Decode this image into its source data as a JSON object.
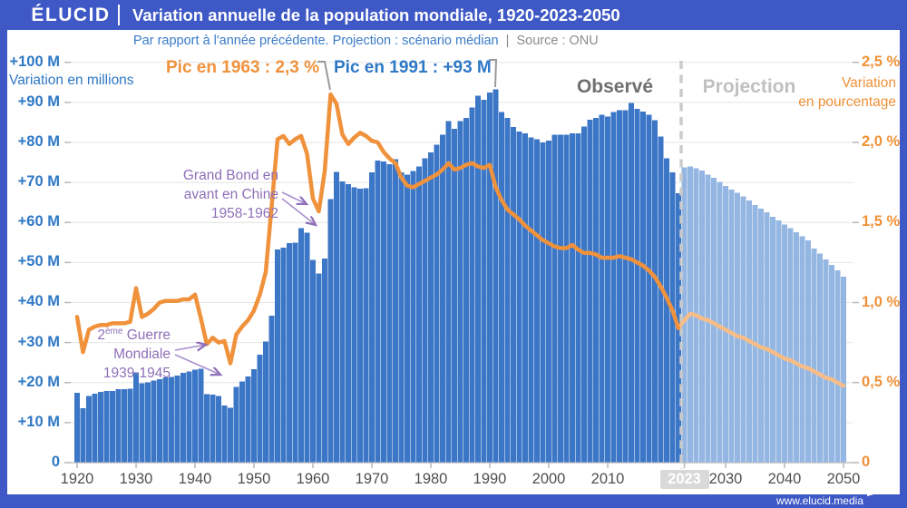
{
  "header": {
    "logo": "ÉLUCID",
    "title": "Variation annuelle de la population mondiale, 1920-2023-2050"
  },
  "subtitle": {
    "text_blue": "Par rapport à l'année précédente. Projection : scénario médian",
    "divider": "  |  ",
    "source": "Source : ONU"
  },
  "footer": {
    "url": "www.elucid.media"
  },
  "zones": {
    "observed": "Observé",
    "projection": "Projection"
  },
  "annotations": {
    "peak1963": "Pic en 1963 : 2,3 %",
    "peak1991": "Pic en 1991 : +93 M",
    "china": {
      "line1": "Grand Bond en",
      "line2": "avant en Chine",
      "line3": "1958-1962"
    },
    "ww2": {
      "line1_num": "2",
      "line1_sup": "ème",
      "line1_rest": " Guerre",
      "line2": "Mondiale",
      "line3": "1939-1945"
    }
  },
  "axes": {
    "left": {
      "title": "Variation en millions",
      "ticks": [
        {
          "label": "+100 M",
          "value": 100
        },
        {
          "label": "+90 M",
          "value": 90
        },
        {
          "label": "+80 M",
          "value": 80
        },
        {
          "label": "+70 M",
          "value": 70
        },
        {
          "label": "+60 M",
          "value": 60
        },
        {
          "label": "+50 M",
          "value": 50
        },
        {
          "label": "+40 M",
          "value": 40
        },
        {
          "label": "+30 M",
          "value": 30
        },
        {
          "label": "+20 M",
          "value": 20
        },
        {
          "label": "+10 M",
          "value": 10
        },
        {
          "label": "0",
          "value": 0
        }
      ]
    },
    "right": {
      "title_line1": "Variation",
      "title_line2": "en pourcentage",
      "ticks": [
        {
          "label": "2,5 %",
          "value": 2.5
        },
        {
          "label": "2,0 %",
          "value": 2.0
        },
        {
          "label": "1,5 %",
          "value": 1.5
        },
        {
          "label": "1,0 %",
          "value": 1.0
        },
        {
          "label": "0,5 %",
          "value": 0.5
        },
        {
          "label": "0",
          "value": 0
        }
      ]
    },
    "x": {
      "labels": [
        {
          "label": "1920",
          "year": 1920
        },
        {
          "label": "1930",
          "year": 1930
        },
        {
          "label": "1940",
          "year": 1940
        },
        {
          "label": "1950",
          "year": 1950
        },
        {
          "label": "1960",
          "year": 1960
        },
        {
          "label": "1970",
          "year": 1970
        },
        {
          "label": "1980",
          "year": 1980
        },
        {
          "label": "1990",
          "year": 1990
        },
        {
          "label": "2000",
          "year": 2000
        },
        {
          "label": "2010",
          "year": 2010
        },
        {
          "label": "2023",
          "year": 2023,
          "highlight": true
        },
        {
          "label": "2030",
          "year": 2030
        },
        {
          "label": "2040",
          "year": 2040
        },
        {
          "label": "2050",
          "year": 2050
        }
      ]
    }
  },
  "colors": {
    "header_bg": "#3e58c6",
    "bar_observed": "#3b76c7",
    "bar_projection": "#94b6e2",
    "line_observed": "#f0923c",
    "line_projection": "#f6bd88",
    "axis_blue": "#2e78c6",
    "axis_orange": "#ef9138",
    "annotation_purple": "#8e6fb8",
    "zone_observed_gray": "#6f6f6f",
    "zone_projection_gray": "#c0c0c0",
    "x_label_gray": "#4f4f4f",
    "grid": "#e4e4e4",
    "axis_line": "#c2c2c2",
    "tick": "#b9b9b9",
    "dashed_line": "#cbcbcb",
    "badge_bg": "#d9d9d9"
  },
  "chart_data": {
    "type": "bar+line",
    "title": "Variation annuelle de la population mondiale, 1920-2023-2050",
    "start_year": 1920,
    "end_year": 2050,
    "observed_through": 2022,
    "projection_from": 2023,
    "left_ylabel": "Variation en millions",
    "right_ylabel": "Variation en pourcentage",
    "left_ylim": [
      0,
      100
    ],
    "right_ylim": [
      0,
      2.5
    ],
    "bars_millions": [
      17.4,
      13.6,
      16.6,
      17.2,
      17.7,
      17.9,
      17.9,
      18.3,
      18.3,
      18.5,
      22.6,
      19.8,
      20.1,
      20.5,
      20.9,
      21.3,
      21.4,
      21.8,
      22.4,
      22.8,
      23.2,
      23.5,
      17.1,
      17.0,
      16.7,
      14.3,
      13.7,
      18.9,
      20.3,
      21.5,
      23.3,
      27.0,
      30.2,
      36.7,
      53.3,
      53.7,
      54.8,
      55.0,
      58.6,
      57.4,
      50.6,
      47.2,
      51.0,
      65.8,
      72.6,
      70.3,
      69.6,
      68.8,
      68.4,
      68.6,
      72.5,
      75.5,
      75.2,
      74.5,
      75.8,
      72.5,
      72.0,
      72.8,
      74.0,
      76.0,
      77.5,
      79.4,
      81.9,
      85.3,
      83.4,
      85.3,
      86.1,
      88.7,
      91.7,
      90.6,
      92.5,
      93.2,
      87.6,
      86.1,
      83.8,
      82.7,
      82.3,
      81.2,
      80.8,
      80.0,
      80.4,
      81.9,
      81.9,
      81.9,
      82.3,
      82.3,
      84.0,
      85.7,
      86.1,
      86.9,
      86.5,
      87.6,
      88.0,
      88.0,
      89.9,
      88.4,
      87.7,
      86.9,
      85.5,
      81.5,
      76.0,
      72.5,
      67.3,
      73.8,
      74.0,
      73.5,
      73.0,
      72.0,
      71.1,
      70.1,
      69.1,
      68.2,
      67.4,
      66.5,
      65.5,
      64.4,
      63.5,
      62.5,
      61.4,
      60.5,
      59.5,
      58.6,
      57.6,
      56.5,
      55.5,
      53.5,
      52.2,
      50.8,
      49.4,
      48.0,
      46.5
    ],
    "line_percent": [
      0.91,
      0.69,
      0.83,
      0.85,
      0.86,
      0.86,
      0.87,
      0.87,
      0.87,
      0.88,
      1.09,
      0.91,
      0.93,
      0.96,
      1.0,
      1.01,
      1.01,
      1.01,
      1.02,
      1.02,
      1.05,
      0.9,
      0.74,
      0.78,
      0.75,
      0.76,
      0.62,
      0.8,
      0.85,
      0.89,
      0.95,
      1.05,
      1.19,
      1.6,
      2.02,
      2.04,
      1.99,
      2.02,
      2.04,
      1.93,
      1.65,
      1.57,
      1.82,
      2.3,
      2.24,
      2.05,
      1.99,
      2.03,
      2.06,
      2.04,
      2.01,
      2.0,
      1.94,
      1.9,
      1.87,
      1.78,
      1.73,
      1.72,
      1.74,
      1.76,
      1.78,
      1.8,
      1.83,
      1.87,
      1.83,
      1.84,
      1.86,
      1.87,
      1.85,
      1.84,
      1.86,
      1.72,
      1.64,
      1.58,
      1.55,
      1.52,
      1.48,
      1.45,
      1.42,
      1.39,
      1.37,
      1.35,
      1.34,
      1.34,
      1.36,
      1.33,
      1.31,
      1.31,
      1.3,
      1.28,
      1.28,
      1.28,
      1.29,
      1.28,
      1.27,
      1.25,
      1.23,
      1.2,
      1.16,
      1.1,
      1.03,
      0.95,
      0.84,
      0.89,
      0.93,
      0.92,
      0.9,
      0.89,
      0.87,
      0.85,
      0.83,
      0.81,
      0.79,
      0.78,
      0.76,
      0.74,
      0.72,
      0.71,
      0.69,
      0.67,
      0.65,
      0.64,
      0.62,
      0.6,
      0.59,
      0.57,
      0.55,
      0.53,
      0.52,
      0.5,
      0.48
    ]
  }
}
